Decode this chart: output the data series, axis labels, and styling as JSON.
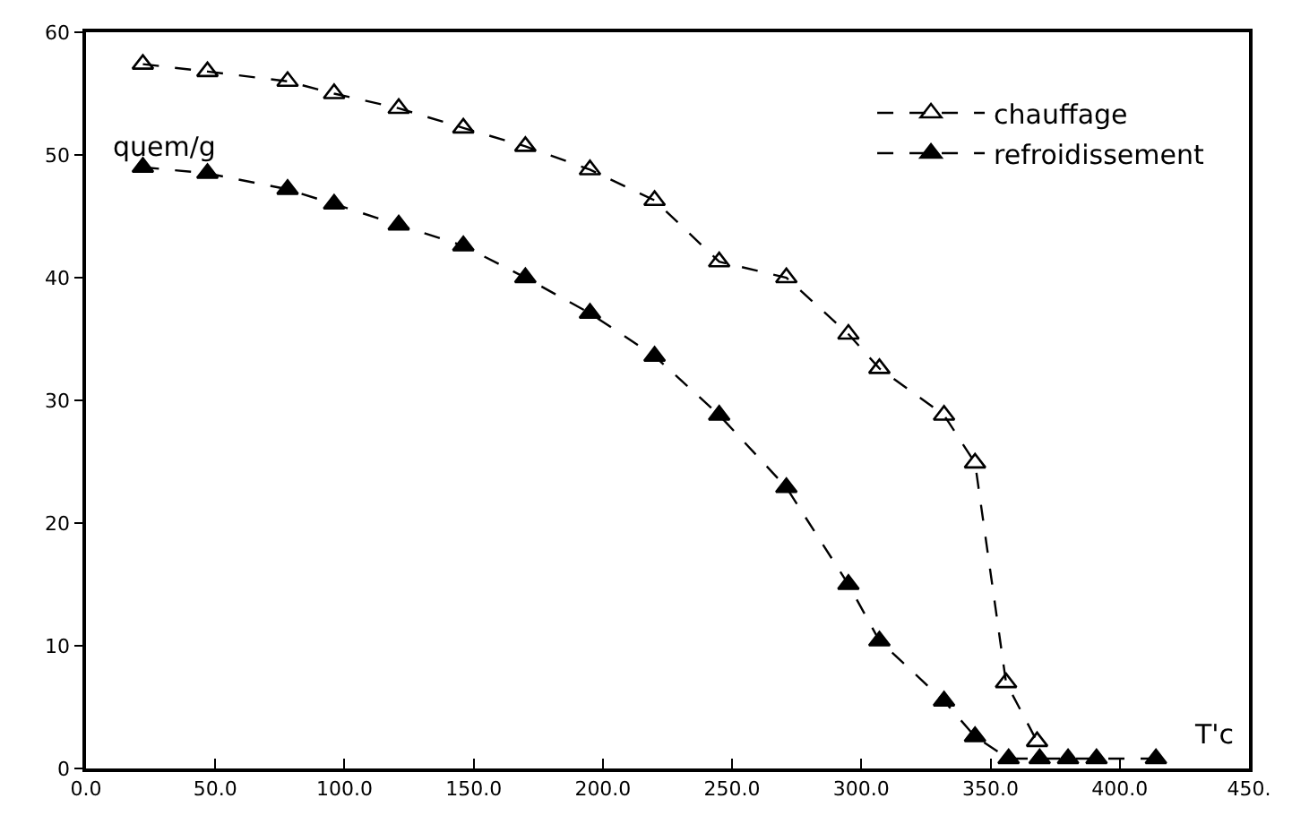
{
  "chart_data": {
    "type": "line",
    "xlabel": "T'c",
    "ylabel": "quem/g",
    "xlim": [
      0,
      450
    ],
    "xticks": [
      {
        "value": 0,
        "label": "0.0"
      },
      {
        "value": 50,
        "label": "50.0"
      },
      {
        "value": 100,
        "label": "100.0"
      },
      {
        "value": 150,
        "label": "150.0"
      },
      {
        "value": 200,
        "label": "200.0"
      },
      {
        "value": 250,
        "label": "250.0"
      },
      {
        "value": 300,
        "label": "300.0"
      },
      {
        "value": 350,
        "label": "350.0"
      },
      {
        "value": 400,
        "label": "400.0"
      },
      {
        "value": 450,
        "label": "450."
      }
    ],
    "ylim": [
      0,
      60
    ],
    "yticks": [
      0,
      10,
      20,
      30,
      40,
      50,
      60
    ],
    "grid": false,
    "legend": "top right",
    "marker": "triangle",
    "line_style": "dashed",
    "series": [
      {
        "name": "chauffage",
        "color": "#000000",
        "x": [
          22,
          47,
          78,
          96,
          121,
          146,
          170,
          195,
          220,
          245,
          271,
          295,
          307,
          332,
          344,
          356,
          368
        ],
        "values": [
          57.4,
          56.8,
          56,
          55,
          53.8,
          52.2,
          50.7,
          48.8,
          46.3,
          41.3,
          40,
          35.4,
          32.6,
          28.8,
          24.9,
          7,
          2.2
        ]
      },
      {
        "name": "refroidissement",
        "color": "#000000",
        "x": [
          22,
          47,
          78,
          96,
          121,
          146,
          170,
          195,
          220,
          245,
          271,
          295,
          307,
          332,
          344,
          357,
          369,
          380,
          391,
          414
        ],
        "values": [
          49,
          48.5,
          47.2,
          46,
          44.3,
          42.6,
          40,
          37.1,
          33.6,
          28.8,
          22.9,
          15,
          10.4,
          5.5,
          2.6,
          0.8,
          0.8,
          0.8,
          0.8,
          0.8
        ]
      }
    ]
  }
}
